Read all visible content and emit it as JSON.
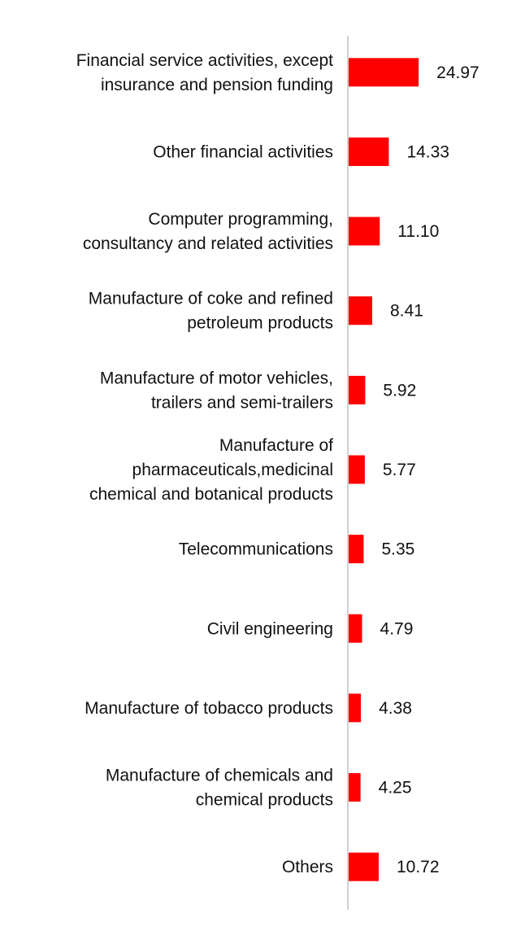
{
  "chart_data": {
    "type": "bar",
    "orientation": "horizontal",
    "title": "",
    "xlabel": "",
    "ylabel": "",
    "xlim": [
      0,
      100
    ],
    "grid": false,
    "legend": "none",
    "bar_color": "#ff0000",
    "axis_color": "#d0d0d0",
    "categories": [
      [
        "Financial service activities, except",
        "insurance and pension funding"
      ],
      [
        "Other financial activities"
      ],
      [
        "Computer programming,",
        "consultancy and related activities"
      ],
      [
        "Manufacture of coke and refined",
        "petroleum products"
      ],
      [
        "Manufacture of motor vehicles,",
        "trailers and semi-trailers"
      ],
      [
        "Manufacture of",
        "pharmaceuticals,medicinal",
        "chemical and botanical products"
      ],
      [
        "Telecommunications"
      ],
      [
        "Civil engineering"
      ],
      [
        "Manufacture of tobacco products"
      ],
      [
        "Manufacture of chemicals and",
        "chemical products"
      ],
      [
        "Others"
      ]
    ],
    "values": [
      24.97,
      14.33,
      11.1,
      8.41,
      5.92,
      5.77,
      5.35,
      4.79,
      4.38,
      4.25,
      10.72
    ],
    "value_labels": [
      "24.97",
      "14.33",
      "11.10",
      "8.41",
      "5.92",
      "5.77",
      "5.35",
      "4.79",
      "4.38",
      "4.25",
      "10.72"
    ]
  }
}
